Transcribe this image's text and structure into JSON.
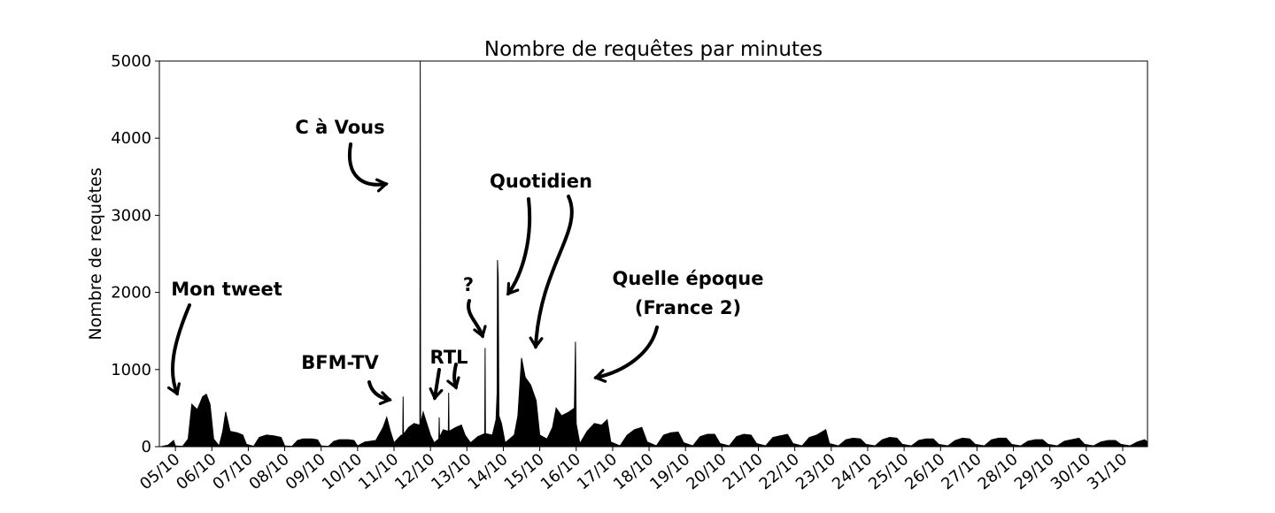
{
  "chart_data": {
    "type": "area",
    "title": "Nombre de requêtes par minutes",
    "ylabel": "Nombre de requêtes",
    "color": "#000000",
    "xlim": [
      4.56,
      31.68
    ],
    "ylim": [
      0,
      5000
    ],
    "yticks": [
      0,
      1000,
      2000,
      3000,
      4000,
      5000
    ],
    "xticks": [
      {
        "value": 5,
        "label": "05/10"
      },
      {
        "value": 6,
        "label": "06/10"
      },
      {
        "value": 7,
        "label": "07/10"
      },
      {
        "value": 8,
        "label": "08/10"
      },
      {
        "value": 9,
        "label": "09/10"
      },
      {
        "value": 10,
        "label": "10/10"
      },
      {
        "value": 11,
        "label": "11/10"
      },
      {
        "value": 12,
        "label": "12/10"
      },
      {
        "value": 13,
        "label": "13/10"
      },
      {
        "value": 14,
        "label": "14/10"
      },
      {
        "value": 15,
        "label": "15/10"
      },
      {
        "value": 16,
        "label": "16/10"
      },
      {
        "value": 17,
        "label": "17/10"
      },
      {
        "value": 18,
        "label": "18/10"
      },
      {
        "value": 19,
        "label": "19/10"
      },
      {
        "value": 20,
        "label": "20/10"
      },
      {
        "value": 21,
        "label": "21/10"
      },
      {
        "value": 22,
        "label": "22/10"
      },
      {
        "value": 23,
        "label": "23/10"
      },
      {
        "value": 24,
        "label": "24/10"
      },
      {
        "value": 25,
        "label": "25/10"
      },
      {
        "value": 26,
        "label": "26/10"
      },
      {
        "value": 27,
        "label": "27/10"
      },
      {
        "value": 28,
        "label": "28/10"
      },
      {
        "value": 29,
        "label": "29/10"
      },
      {
        "value": 30,
        "label": "30/10"
      },
      {
        "value": 31,
        "label": "31/10"
      }
    ],
    "x": [
      4.6,
      4.8,
      4.95,
      5.0,
      5.2,
      5.35,
      5.45,
      5.6,
      5.75,
      5.85,
      5.95,
      6.05,
      6.2,
      6.3,
      6.38,
      6.5,
      6.7,
      6.85,
      6.95,
      7.15,
      7.3,
      7.5,
      7.7,
      7.9,
      8.0,
      8.2,
      8.35,
      8.5,
      8.75,
      8.9,
      9.0,
      9.2,
      9.35,
      9.5,
      9.75,
      9.9,
      10.0,
      10.2,
      10.5,
      10.7,
      10.8,
      10.9,
      11.0,
      11.2,
      11.24,
      11.25,
      11.26,
      11.4,
      11.55,
      11.7,
      11.71,
      11.72,
      11.73,
      11.8,
      11.9,
      12.0,
      12.1,
      12.23,
      12.24,
      12.25,
      12.35,
      12.49,
      12.5,
      12.51,
      12.7,
      12.85,
      12.95,
      13.1,
      13.3,
      13.49,
      13.5,
      13.51,
      13.7,
      13.8,
      13.83,
      13.84,
      13.86,
      13.88,
      13.95,
      14.05,
      14.3,
      14.4,
      14.5,
      14.6,
      14.75,
      14.9,
      15.0,
      15.2,
      15.35,
      15.45,
      15.6,
      15.8,
      15.95,
      15.98,
      16.0,
      16.1,
      16.3,
      16.5,
      16.7,
      16.85,
      16.95,
      17.2,
      17.4,
      17.6,
      17.8,
      17.95,
      18.2,
      18.4,
      18.6,
      18.8,
      18.95,
      19.2,
      19.4,
      19.6,
      19.8,
      19.95,
      20.2,
      20.4,
      20.6,
      20.8,
      20.95,
      21.2,
      21.4,
      21.6,
      21.8,
      21.95,
      22.2,
      22.4,
      22.6,
      22.85,
      22.95,
      23.2,
      23.4,
      23.6,
      23.8,
      23.95,
      24.2,
      24.4,
      24.6,
      24.8,
      24.95,
      25.2,
      25.4,
      25.6,
      25.8,
      25.95,
      26.2,
      26.4,
      26.6,
      26.8,
      26.95,
      27.2,
      27.4,
      27.6,
      27.8,
      27.95,
      28.2,
      28.4,
      28.6,
      28.8,
      28.95,
      29.2,
      29.4,
      29.6,
      29.8,
      29.95,
      30.2,
      30.4,
      30.6,
      30.8,
      30.95,
      31.2,
      31.4,
      31.6,
      31.68
    ],
    "values": [
      0,
      20,
      80,
      10,
      5,
      100,
      550,
      480,
      650,
      680,
      550,
      100,
      10,
      200,
      450,
      200,
      180,
      150,
      30,
      5,
      120,
      150,
      140,
      120,
      10,
      5,
      80,
      100,
      100,
      90,
      10,
      5,
      70,
      90,
      90,
      80,
      10,
      60,
      80,
      250,
      380,
      200,
      50,
      150,
      150,
      650,
      160,
      250,
      300,
      280,
      300,
      5000,
      300,
      450,
      300,
      150,
      50,
      100,
      380,
      120,
      220,
      200,
      700,
      200,
      250,
      280,
      150,
      50,
      130,
      170,
      1280,
      170,
      150,
      350,
      700,
      2420,
      2200,
      400,
      300,
      50,
      150,
      400,
      1150,
      900,
      800,
      600,
      150,
      100,
      250,
      500,
      400,
      450,
      500,
      1360,
      300,
      40,
      200,
      300,
      280,
      350,
      60,
      10,
      150,
      220,
      250,
      60,
      10,
      150,
      180,
      190,
      50,
      10,
      130,
      160,
      160,
      40,
      10,
      130,
      160,
      150,
      40,
      10,
      120,
      140,
      160,
      40,
      10,
      120,
      150,
      220,
      40,
      10,
      90,
      110,
      100,
      30,
      10,
      90,
      120,
      110,
      30,
      10,
      80,
      100,
      100,
      30,
      10,
      80,
      110,
      100,
      30,
      10,
      90,
      110,
      110,
      30,
      10,
      70,
      90,
      90,
      30,
      10,
      70,
      90,
      110,
      30,
      10,
      60,
      80,
      80,
      30,
      10,
      60,
      90,
      60
    ],
    "annotations": [
      "Mon tweet",
      "BFM-TV",
      "C à Vous",
      "RTL",
      "?",
      "Quotidien",
      "Quelle époque",
      "(France 2)"
    ]
  }
}
